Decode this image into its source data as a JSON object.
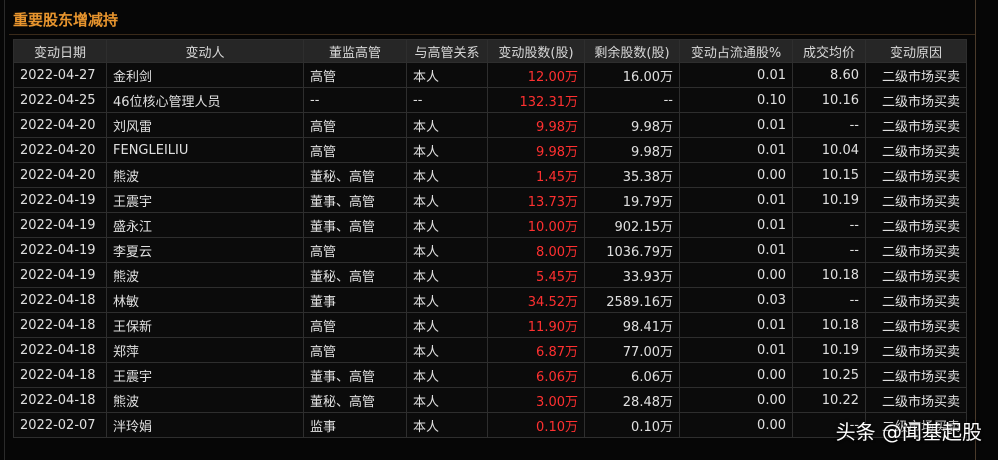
{
  "header": {
    "title": "重要股东增减持"
  },
  "table": {
    "columns": [
      "变动日期",
      "变动人",
      "董监高管",
      "与高管关系",
      "变动股数(股)",
      "剩余股数(股)",
      "变动占流通股%",
      "成交均价",
      "变动原因"
    ],
    "rows": [
      [
        "2022-04-27",
        "金利剑",
        "高管",
        "本人",
        "12.00万",
        "16.00万",
        "0.01",
        "8.60",
        "二级市场买卖"
      ],
      [
        "2022-04-25",
        "46位核心管理人员",
        "--",
        "--",
        "132.31万",
        "--",
        "0.10",
        "10.16",
        "二级市场买卖"
      ],
      [
        "2022-04-20",
        "刘风雷",
        "高管",
        "本人",
        "9.98万",
        "9.98万",
        "0.01",
        "--",
        "二级市场买卖"
      ],
      [
        "2022-04-20",
        "FENGLEILIU",
        "高管",
        "本人",
        "9.98万",
        "9.98万",
        "0.01",
        "10.04",
        "二级市场买卖"
      ],
      [
        "2022-04-20",
        "熊波",
        "董秘、高管",
        "本人",
        "1.45万",
        "35.38万",
        "0.00",
        "10.15",
        "二级市场买卖"
      ],
      [
        "2022-04-19",
        "王震宇",
        "董事、高管",
        "本人",
        "13.73万",
        "19.79万",
        "0.01",
        "10.19",
        "二级市场买卖"
      ],
      [
        "2022-04-19",
        "盛永江",
        "董事、高管",
        "本人",
        "10.00万",
        "902.15万",
        "0.01",
        "--",
        "二级市场买卖"
      ],
      [
        "2022-04-19",
        "李夏云",
        "高管",
        "本人",
        "8.00万",
        "1036.79万",
        "0.01",
        "--",
        "二级市场买卖"
      ],
      [
        "2022-04-19",
        "熊波",
        "董秘、高管",
        "本人",
        "5.45万",
        "33.93万",
        "0.00",
        "10.18",
        "二级市场买卖"
      ],
      [
        "2022-04-18",
        "林敏",
        "董事",
        "本人",
        "34.52万",
        "2589.16万",
        "0.03",
        "--",
        "二级市场买卖"
      ],
      [
        "2022-04-18",
        "王保新",
        "高管",
        "本人",
        "11.90万",
        "98.41万",
        "0.01",
        "10.18",
        "二级市场买卖"
      ],
      [
        "2022-04-18",
        "郑萍",
        "高管",
        "本人",
        "6.87万",
        "77.00万",
        "0.01",
        "10.19",
        "二级市场买卖"
      ],
      [
        "2022-04-18",
        "王震宇",
        "董事、高管",
        "本人",
        "6.06万",
        "6.06万",
        "0.00",
        "10.25",
        "二级市场买卖"
      ],
      [
        "2022-04-18",
        "熊波",
        "董秘、高管",
        "本人",
        "3.00万",
        "28.48万",
        "0.00",
        "10.22",
        "二级市场买卖"
      ],
      [
        "2022-02-07",
        "泮玲娟",
        "监事",
        "本人",
        "0.10万",
        "0.10万",
        "0.00",
        "--",
        "二级市场买卖"
      ]
    ]
  },
  "watermark": "头条 @闻基起股"
}
